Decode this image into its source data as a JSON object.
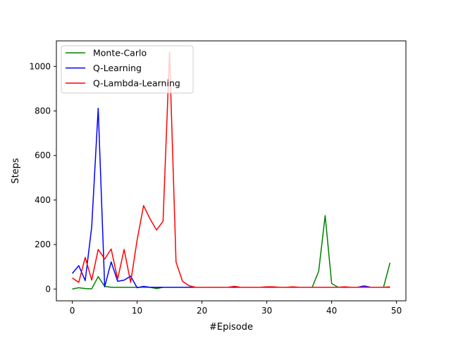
{
  "chart_data": {
    "type": "line",
    "xlabel": "#Episode",
    "ylabel": "Steps",
    "xlim": [
      -2.45,
      51.45
    ],
    "ylim": [
      -53,
      1115
    ],
    "xticks": [
      0,
      10,
      20,
      30,
      40,
      50
    ],
    "yticks": [
      0,
      200,
      400,
      600,
      800,
      1000
    ],
    "grid": false,
    "legend_position": "top-left",
    "x": [
      0,
      1,
      2,
      3,
      4,
      5,
      6,
      7,
      8,
      9,
      10,
      11,
      12,
      13,
      14,
      15,
      16,
      17,
      18,
      19,
      20,
      21,
      22,
      23,
      24,
      25,
      26,
      27,
      28,
      29,
      30,
      31,
      32,
      33,
      34,
      35,
      36,
      37,
      38,
      39,
      40,
      41,
      42,
      43,
      44,
      45,
      46,
      47,
      48,
      49
    ],
    "series": [
      {
        "name": "Monte-Carlo",
        "color": "#008000",
        "values": [
          0,
          6,
          2,
          1,
          56,
          12,
          8,
          8,
          8,
          8,
          8,
          8,
          8,
          2,
          8,
          8,
          8,
          8,
          8,
          8,
          8,
          8,
          8,
          8,
          8,
          8,
          8,
          8,
          8,
          8,
          8,
          8,
          8,
          8,
          8,
          8,
          8,
          8,
          80,
          330,
          25,
          8,
          8,
          8,
          8,
          8,
          8,
          8,
          8,
          118
        ]
      },
      {
        "name": "Q-Learning",
        "color": "#0000ff",
        "values": [
          70,
          105,
          38,
          280,
          812,
          10,
          122,
          35,
          40,
          58,
          6,
          12,
          8,
          8,
          8,
          8,
          8,
          8,
          8,
          8,
          8,
          8,
          8,
          8,
          8,
          8,
          8,
          8,
          8,
          8,
          8,
          8,
          8,
          8,
          8,
          8,
          8,
          8,
          8,
          8,
          8,
          8,
          8,
          8,
          8,
          14,
          8,
          8,
          8,
          8
        ]
      },
      {
        "name": "Q-Lambda-Learning",
        "color": "#ff0000",
        "values": [
          50,
          30,
          142,
          40,
          178,
          135,
          180,
          45,
          178,
          30,
          220,
          375,
          315,
          265,
          305,
          1063,
          122,
          35,
          15,
          8,
          8,
          8,
          8,
          8,
          8,
          12,
          8,
          8,
          8,
          8,
          10,
          10,
          8,
          8,
          10,
          8,
          8,
          8,
          8,
          8,
          8,
          8,
          10,
          8,
          8,
          8,
          8,
          8,
          8,
          10
        ]
      }
    ]
  }
}
